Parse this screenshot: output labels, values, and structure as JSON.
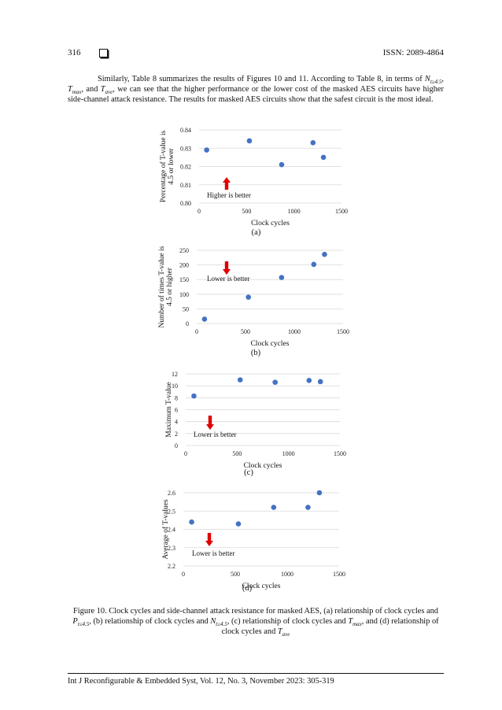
{
  "header": {
    "page_number": "316",
    "issn": "ISSN: 2089-4864"
  },
  "paragraph": {
    "t1": "Similarly, Table 8 summarizes the results of Figures 10 and 11. According to Table 8, in terms of ",
    "n_base": "N",
    "n_sub": "t≥4.5",
    "sep1": ", ",
    "tmax_base": "T",
    "tmax_sub": "max",
    "sep2": ", and ",
    "tave_base": "T",
    "tave_sub": "ave",
    "t2": ", we can see that the higher performance or the lower cost of the masked AES circuits have higher side-channel attack resistance. The results for masked AES circuits show that the safest circuit is the most ideal."
  },
  "chart_data": [
    {
      "type": "scatter",
      "panel": "(a)",
      "ylabel_lines": [
        "Percentage of T-value is",
        "4.5 or lower"
      ],
      "xlabel": "Clock cycles",
      "xlim": [
        0,
        1500
      ],
      "ylim": [
        0.8,
        0.84
      ],
      "x_ticks": [
        0,
        500,
        1000,
        1500
      ],
      "y_ticks": [
        "0.80",
        "0.81",
        "0.82",
        "0.83",
        "0.84"
      ],
      "points": [
        [
          80,
          0.829
        ],
        [
          530,
          0.834
        ],
        [
          870,
          0.821
        ],
        [
          1200,
          0.833
        ],
        [
          1310,
          0.825
        ]
      ],
      "annotation": "Higher is better",
      "arrow": "up",
      "color": "#4472c4"
    },
    {
      "type": "scatter",
      "panel": "(b)",
      "ylabel_lines": [
        "Number of times T-value is",
        "4.5 or higher"
      ],
      "xlabel": "Clock cycles",
      "xlim": [
        0,
        1500
      ],
      "ylim": [
        0,
        250
      ],
      "x_ticks": [
        0,
        500,
        1000,
        1500
      ],
      "y_ticks": [
        "0",
        "50",
        "100",
        "150",
        "200",
        "250"
      ],
      "points": [
        [
          80,
          15
        ],
        [
          530,
          90
        ],
        [
          870,
          157
        ],
        [
          1200,
          202
        ],
        [
          1310,
          236
        ]
      ],
      "annotation": "Lower is better",
      "arrow": "down",
      "color": "#4472c4"
    },
    {
      "type": "scatter",
      "panel": "(c)",
      "ylabel_lines": [
        "Maximum T-value"
      ],
      "xlabel": "Clock cycles",
      "xlim": [
        0,
        1500
      ],
      "ylim": [
        0,
        12
      ],
      "x_ticks": [
        0,
        500,
        1000,
        1500
      ],
      "y_ticks": [
        "0",
        "2",
        "4",
        "6",
        "8",
        "10",
        "12"
      ],
      "points": [
        [
          80,
          8.3
        ],
        [
          530,
          11.0
        ],
        [
          870,
          10.6
        ],
        [
          1200,
          10.9
        ],
        [
          1310,
          10.7
        ]
      ],
      "annotation": "Lower is better",
      "arrow": "down",
      "color": "#4472c4"
    },
    {
      "type": "scatter",
      "panel": "(d)",
      "ylabel_lines": [
        "Average of  T-values"
      ],
      "xlabel": "Clock cycles",
      "xlim": [
        0,
        1500
      ],
      "ylim": [
        2.2,
        2.6
      ],
      "x_ticks": [
        0,
        500,
        1000,
        1500
      ],
      "y_ticks": [
        "2.2",
        "2.3",
        "2.4",
        "2.5",
        "2.6"
      ],
      "points": [
        [
          80,
          2.44
        ],
        [
          530,
          2.43
        ],
        [
          870,
          2.52
        ],
        [
          1200,
          2.52
        ],
        [
          1310,
          2.6
        ]
      ],
      "annotation": "Lower is better",
      "arrow": "down",
      "color": "#4472c4"
    }
  ],
  "caption": {
    "c1": "Figure 10. Clock cycles and side-channel attack resistance for masked AES, (a) relationship of clock cycles and ",
    "p_base": "P",
    "p_sub": "t≤4.5",
    "c2": ", (b) relationship of clock cycles and ",
    "n_base": "N",
    "n_sub": "t≥4.5",
    "c3": ", (c) relationship of clock cycles and ",
    "tmax_base": "T",
    "tmax_sub": "max",
    "c4": ", and (d) relationship of clock cycles and ",
    "tave_base": "T",
    "tave_sub": "ave"
  },
  "footer": {
    "citation": "Int J Reconfigurable & Embedded Syst, Vol. 12, No. 3, November 2023: 305-319"
  }
}
